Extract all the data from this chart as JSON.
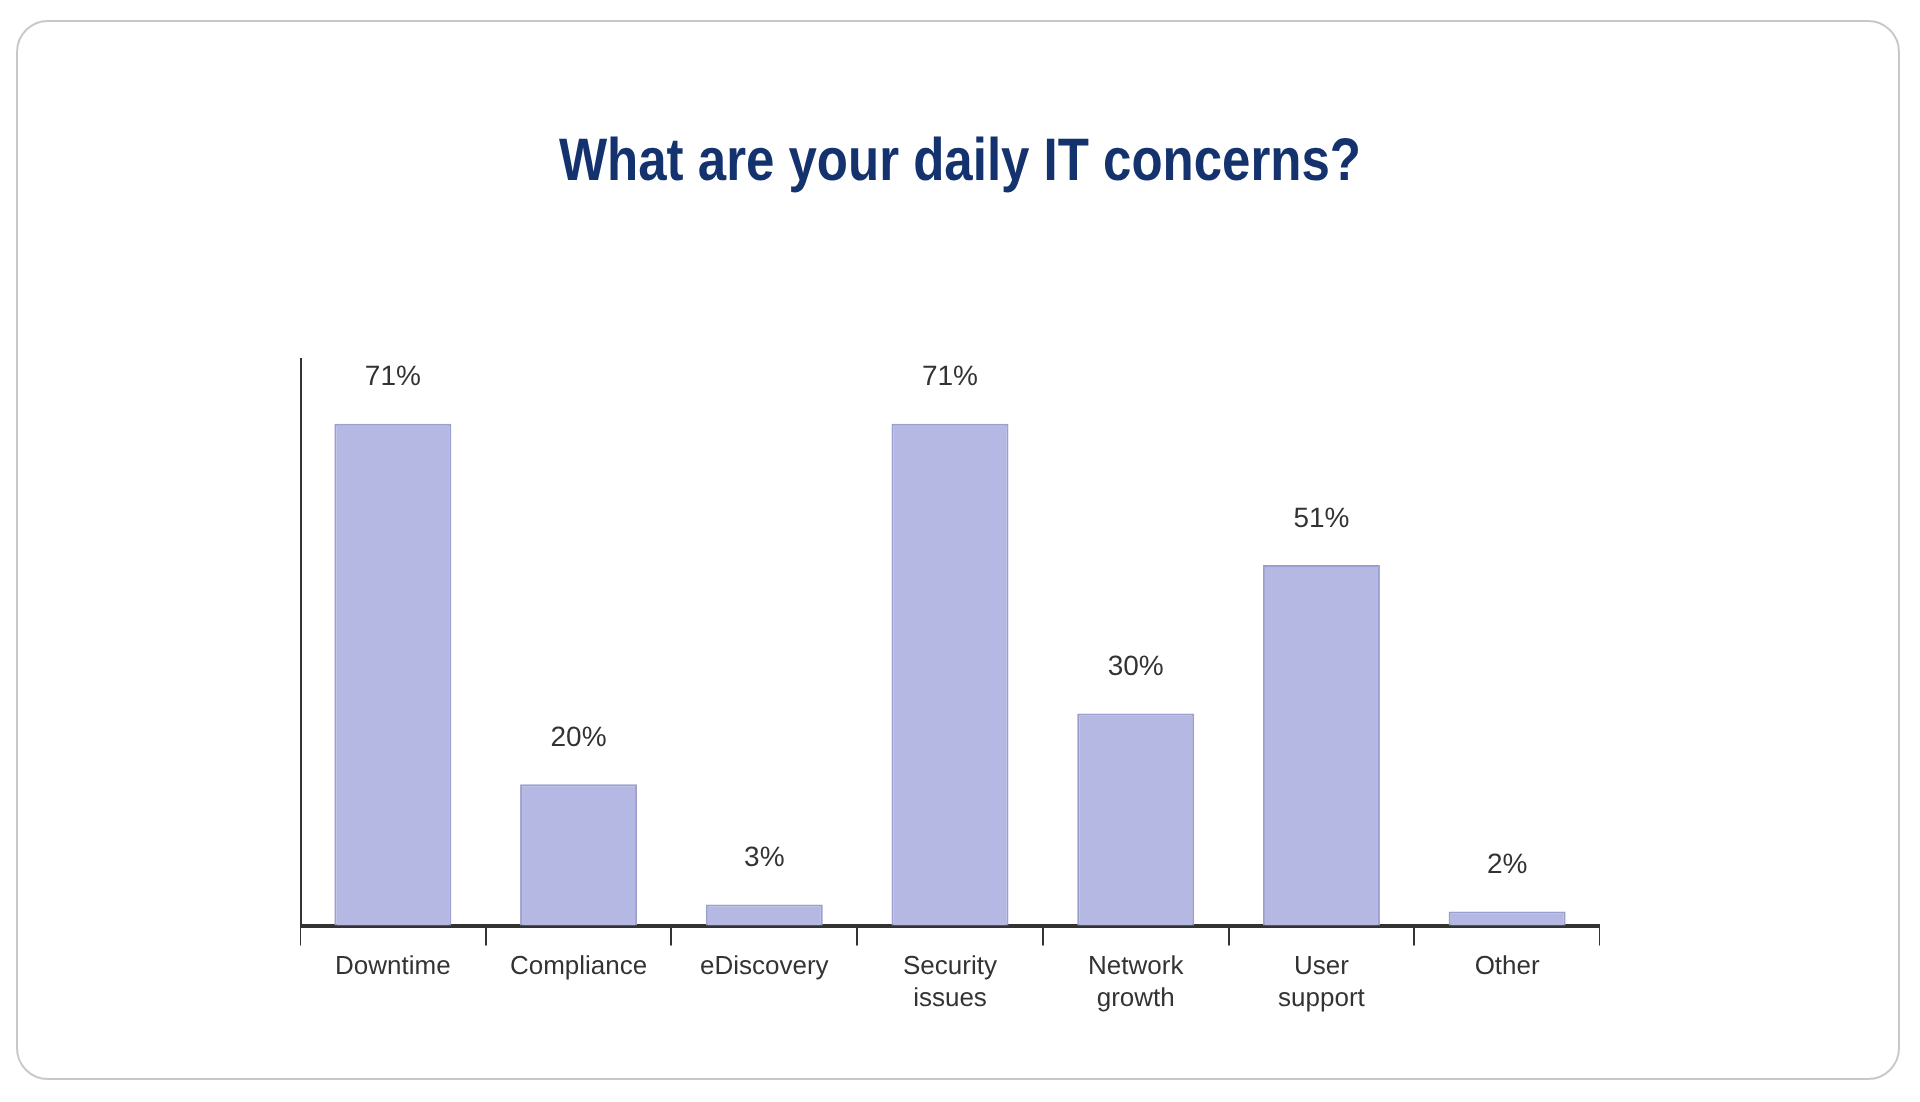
{
  "chart_data": {
    "type": "bar",
    "title": "What are your daily IT concerns?",
    "categories": [
      "Downtime",
      "Compliance",
      "eDiscovery",
      "Security issues",
      "Network growth",
      "User support",
      "Other"
    ],
    "values": [
      71,
      20,
      3,
      71,
      30,
      51,
      2
    ],
    "value_labels": [
      "71%",
      "20%",
      "3%",
      "71%",
      "30%",
      "51%",
      "2%"
    ],
    "color": "#b4b8e2",
    "grid": false,
    "legend": false,
    "tick_labels": "x"
  }
}
